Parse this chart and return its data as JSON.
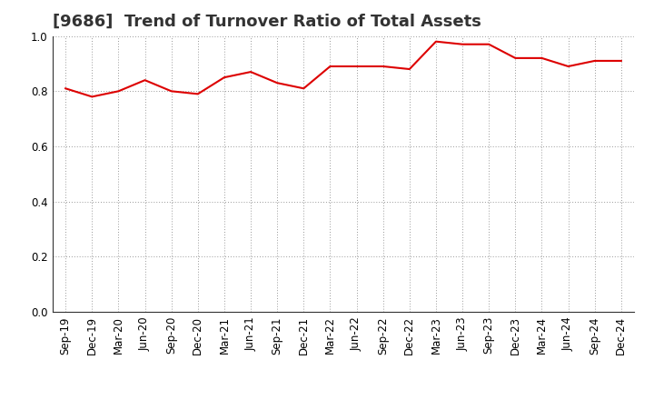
{
  "title": "[9686]  Trend of Turnover Ratio of Total Assets",
  "x_labels": [
    "Sep-19",
    "Dec-19",
    "Mar-20",
    "Jun-20",
    "Sep-20",
    "Dec-20",
    "Mar-21",
    "Jun-21",
    "Sep-21",
    "Dec-21",
    "Mar-22",
    "Jun-22",
    "Sep-22",
    "Dec-22",
    "Mar-23",
    "Jun-23",
    "Sep-23",
    "Dec-23",
    "Mar-24",
    "Jun-24",
    "Sep-24",
    "Dec-24"
  ],
  "y_values": [
    0.81,
    0.78,
    0.8,
    0.84,
    0.8,
    0.79,
    0.85,
    0.87,
    0.83,
    0.81,
    0.89,
    0.89,
    0.89,
    0.88,
    0.98,
    0.97,
    0.97,
    0.92,
    0.92,
    0.89,
    0.91,
    0.91
  ],
  "line_color": "#DD0000",
  "line_width": 1.5,
  "ylim": [
    0.0,
    1.0
  ],
  "yticks": [
    0.0,
    0.2,
    0.4,
    0.6,
    0.8,
    1.0
  ],
  "background_color": "#ffffff",
  "grid_color": "#999999",
  "title_fontsize": 13,
  "tick_fontsize": 8.5
}
